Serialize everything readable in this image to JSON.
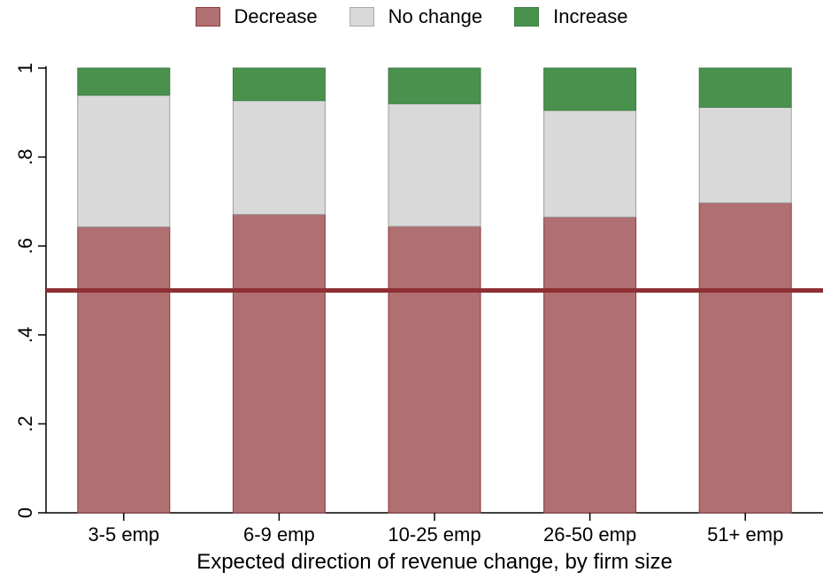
{
  "chart_data": {
    "type": "bar",
    "stacked": true,
    "categories": [
      "3-5 emp",
      "6-9 emp",
      "10-25 emp",
      "26-50 emp",
      "51+ emp"
    ],
    "series": [
      {
        "name": "Decrease",
        "color": "#b07072",
        "values": [
          0.643,
          0.671,
          0.644,
          0.665,
          0.697
        ]
      },
      {
        "name": "No change",
        "color": "#d9d9d9",
        "values": [
          0.296,
          0.256,
          0.276,
          0.24,
          0.215
        ]
      },
      {
        "name": "Increase",
        "color": "#4a914e",
        "values": [
          0.061,
          0.073,
          0.08,
          0.095,
          0.088
        ]
      }
    ],
    "ylim": [
      0,
      1
    ],
    "yticks": [
      {
        "value": 0,
        "label": "0"
      },
      {
        "value": 0.2,
        "label": ".2"
      },
      {
        "value": 0.4,
        "label": ".4"
      },
      {
        "value": 0.6,
        "label": ".6"
      },
      {
        "value": 0.8,
        "label": ".8"
      },
      {
        "value": 1,
        "label": "1"
      }
    ],
    "reference_line": {
      "value": 0.5,
      "color": "#8e2f33"
    },
    "xlabel": "Expected direction of revenue change, by firm size",
    "ylabel": "",
    "legend_position": "top",
    "grid": false
  }
}
